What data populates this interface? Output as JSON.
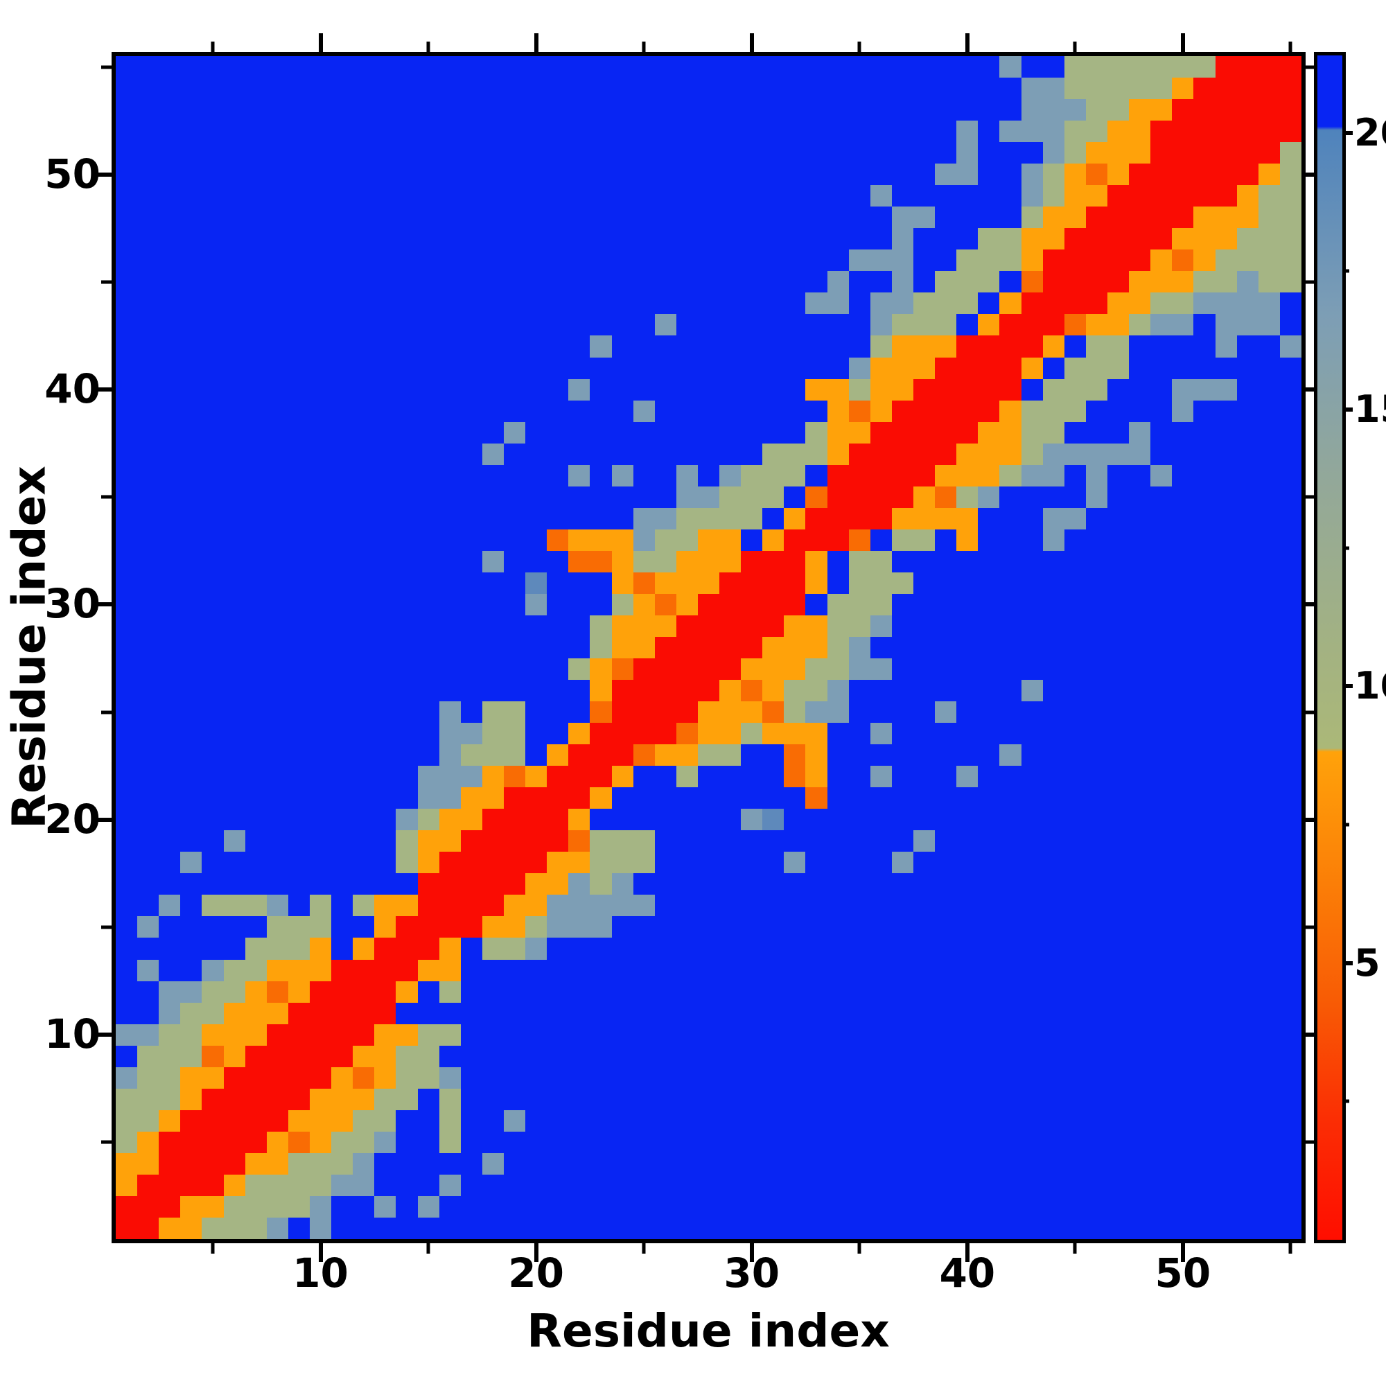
{
  "chart_data": {
    "type": "heatmap",
    "title": "",
    "xlabel": "Residue index",
    "ylabel": "Residue index",
    "n": 55,
    "axis_range": [
      0.5,
      55.5
    ],
    "x_ticks_major": [
      10,
      20,
      30,
      40,
      50
    ],
    "x_ticks_minor": [
      5,
      15,
      25,
      35,
      45,
      55
    ],
    "y_ticks_major": [
      10,
      20,
      30,
      40,
      50
    ],
    "y_ticks_minor": [
      5,
      15,
      25,
      35,
      45,
      55
    ],
    "grid_lines": "off",
    "colorbar": {
      "ticks": [
        5,
        10,
        15,
        20
      ],
      "minor_ticks": [
        2.5,
        7.5,
        12.5,
        17.5
      ],
      "top_value": 21.4,
      "gradient": [
        {
          "at": 0,
          "color": "#0825f3"
        },
        {
          "at": 6.0,
          "color": "#0825f3"
        },
        {
          "at": 6.3,
          "color": "#4f83bc"
        },
        {
          "at": 22,
          "color": "#7d9eb5"
        },
        {
          "at": 36,
          "color": "#93a899"
        },
        {
          "at": 50,
          "color": "#a3b282"
        },
        {
          "at": 58.5,
          "color": "#abb878"
        },
        {
          "at": 58.8,
          "color": "#ffa20a"
        },
        {
          "at": 70,
          "color": "#fb7e07"
        },
        {
          "at": 80,
          "color": "#f85b05"
        },
        {
          "at": 90,
          "color": "#fb2d04"
        },
        {
          "at": 100,
          "color": "#ff0e00"
        }
      ]
    },
    "palette": {
      "B": "#0825f3",
      "S": "#7d9eb5",
      "T": "#5e89bb",
      "G": "#a5b584",
      "O": "#ffa20a",
      "D": "#f96c04",
      "R": "#fa0c03"
    },
    "palette_values_approx": {
      "B": 21.4,
      "S": 16,
      "T": 18,
      "G": 11,
      "O": 7,
      "D": 5,
      "R": 2
    },
    "rows_top_to_bottom": [
      "BBBBBBBBBBBBBBBBBBBBBBBBBBBBBBBBBBBBBBBBBSBBGGGGGGGRRRR",
      "BBBBBBBBBBBBBBBBBBBBBBBBBBBBBBBBBBBBBBBBBBSSGGGGGORRRRR",
      "BBBBBBBBBBBBBBBBBBBBBBBBBBBBBBBBBBBBBBBBBBSSSGGOORRRRRR",
      "BBBBBBBBBBBBBBBBBBBBBBBBBBBBBBBBBBBBBBBSBSSSGGOORRRRRRR",
      "BBBBBBBBBBBBBBBBBBBBBBBBBBBBBBBBBBBBBBBSBBBSGOOORRRRRRG",
      "BBBBBBBBBBBBBBBBBBBBBBBBBBBBBBBBBBBBBBSSBBSGODORRRRRROG",
      "BBBBBBBBBBBBBBBBBBBBBBBBBBBBBBBBBBBSBBBBBBSGOORRRRRROGG",
      "BBBBBBBBBBBBBBBBBBBBBBBBBBBBBBBBBBBBSSBBBBGOORRRRROOOGG",
      "BBBBBBBBBBBBBBBBBBBBBBBBBBBBBBBBBBBBSBBBGGOORRRRROOOGGG",
      "BBBBBBBBBBBBBBBBBBBBBBBBBBBBBBBBBBSSSBBGGGORRRRRODOGGGG",
      "BBBBBBBBBBBBBBBBBBBBBBBBBBBBBBBBBSBBSBGGGBDRRRROOOGGSGG",
      "BBBBBBBBBBBBBBBBBBBBBBBBBBBBBBBBSSBSSGGGBORRRROOGGSSSSB",
      "BBBBBBBBBBBBBBBBBBBBBBBBBSBBBBBBBBBSGGGBORRRDOOGSSBSSSB",
      "BBBBBBBBBBBBBBBBBBBBBBSBBBBBBBBBBBBGOOORRRROBGGBBBBSBBS",
      "BBBBBBBBBBBBBBBBBBBBBBBBBBBBBBBBBBSOOORRRROBGGGBBBBBBBB",
      "BBBBBBBBBBBBBBBBBBBBBSBBBBBBBBBBOOGOORRRRRBGGGBBBSSSBBB",
      "BBBBBBBBBBBBBBBBBBBBBBBBSBBBBBBBBODORRRRROGGGBBBBSBBBBB",
      "BBBBBBBBBBBBBBBBBBSBBBBBBBBBBBBBGOORRRRROOGGBBBSBBBBBBB",
      "BBBBBBBBBBBBBBBBBSBBBBBBBBBBBBGGGORRRRROOOGSSSSSBBBBBBB",
      "BBBBBBBBBBBBBBBBBBBBBSBSBBSBSGGGBRRRRROOOGSSBSBBSBBBBBB",
      "BBBBBBBBBBBBBBBBBBBBBBBBBBSSGGGBDRRRRODGSBBBBSBBBBBBBBB",
      "BBBBBBBBBBBBBBBBBBBBBBBBSSGGGGBORRRROOOOBBBSSBBBBBBBBBB",
      "BBBBBBBBBBBBBBBBBBBBDOOOSGGOOBORRRDBGGBOBBBSBBBBBBBBBBB",
      "BBBBBBBBBBBBBBBBBSBBBDDOGGOOORRROBGGBBBBBBBBBBBBBBBBBBB",
      "BBBBBBBBBBBBBBBBBBBTBBBODOOORRRROBGGGBBBBBBBBBBBBBBBBBB",
      "BBBBBBBBBBBBBBBBBBBSBBBGODORRRRRBGGGBBBBBBBBBBBBBBBBBBB",
      "BBBBBBBBBBBBBBBBBBBBBBGOOORRRRROOGGSBBBBBBBBBBBBBBBBBBB",
      "BBBBBBBBBBBBBBBBBBBBBBGOORRRRROOOGSBBBBBBBBBBBBBBBBBBBB",
      "BBBBBBBBBBBBBBBBBBBBBGODRRRRROOOGGSSBBBBBBBBBBBBBBBBBBB",
      "BBBBBBBBBBBBBBBBBBBBBBORRRRRODOGGSBBBBBBBBSBBBBBBBBBBBB",
      "BBBBBBBBBBBBBBBSBGGBBBDRRRROOODGSSBBBBSBBBBBBBBBBBBBBBB",
      "BBBBBBBBBBBBBBBSSGGBBORRRRDOOGOOOBBSBBBBBBBBBBBBBBBBBBB",
      "BBBBBBBBBBBBBBBSGGGBORRRDOOGGBBDOBBBBBBBBSBBBBBBBBBBBBB",
      "BBBBBBBBBBBBBBSSSODORRROBBGBBBBDOBBSBBBSBBBBBBBBBBBBBBB",
      "BBBBBBBBBBBBBBSSOORRRROBBBBBBBBBDBBBBBBBBBBBBBBBBBBBBBB",
      "BBBBBBBBBBBBBSGOORRRROBBBBBBBSTBBBBBBBBBBBBBBBBBBBBBBBB",
      "BBBBBSBBBBBBBGOORRRRRDGGGBBBBBBBBBBBBSBBBBBBBBBBBBBBBBB",
      "BBBSBBBBBBBBBGORRRRROOGGGBBBBBBSBBBBSBBBBBBBBBBBBBBBBBB",
      "BBBBBBBBBBBBBBRRRRROOSGSBBBBBBBBBBBBBBBBBBBBBBBBBBBBBBB",
      "BBSBGGGSBGBGOORRRROOSSSSSBBBBBBBBBBBBBBBBBBBBBBBBBBBBBB",
      "BSBBBBBGGGBBORRRROOGSSSBBBBBBBBBBBBBBBBBBBBBBBBBBBBBBB",
      "BBBBBBGGGOBORRROBGGSBBBBBBBBBBBBBBBBBBBBBBBBBBBBBBBBBBB",
      "BSBBSGGOOORRRROOBBBBBBBBBBBBBBBBBBBBBBBBBBBBBBBBBBBBBBB",
      "BBSSGGODORRRROBGBBBBBBBBBBBBBBBBBBBBBBBBBBBBBBBBBBBBBBB",
      "BBSGGOOORRRRRBBBBBBBBBBBBBBBBBBBBBBBBBBBBBBBBBBBBBBBBBB",
      "SSGGOOORRRRROOGGBBBBBBBBBBBBBBBBBBBBBBBBBBBBBBBBBBBBBBB",
      "BGGGDORRRRROOGGBBBBBBBBBBBBBBBBBBBBBBBBBBBBBBBBBBBBBBBB",
      "SGGOORRRRRODOGGSBBBBBBBBBBBBBBBBBBBBBBBBBBBBBBBBBBBBBBB",
      "GGGORRRRROOOGGBGBBBBBBBBBBBBBBBBBBBBBBBBBBBBBBBBBBBBBBB",
      "GGORRRRROOOGGBBGBBSBBBBBBBBBBBBBBBBBBBBBBBBBBBBBBBBBBBB",
      "GORRRRRODOGGSBBGBBBBBBBBBBBBBBBBBBBBBBBBBBBBBBBBBBBBBBB",
      "OORRRROOGGGSBBBBBSBBBBBBBBBBBBBBBBBBBBBBBBBBBBBBBBBBBBB",
      "ORRRROGGGGSSBBBSBBBBBBBBBBBBBBBBBBBBBBBBBBBBBBBBBBBBBBB",
      "RRROOGGGGSBBSBSBBBBBBBBBBBBBBBBBBBBBBBBBBBBBBBBBBBBBBBB",
      "RROOGGGSBSBBBBBBBBBBBBBBBBBBBBBBBBBBBBBBBBBBBBBBBBBBBBB"
    ]
  }
}
